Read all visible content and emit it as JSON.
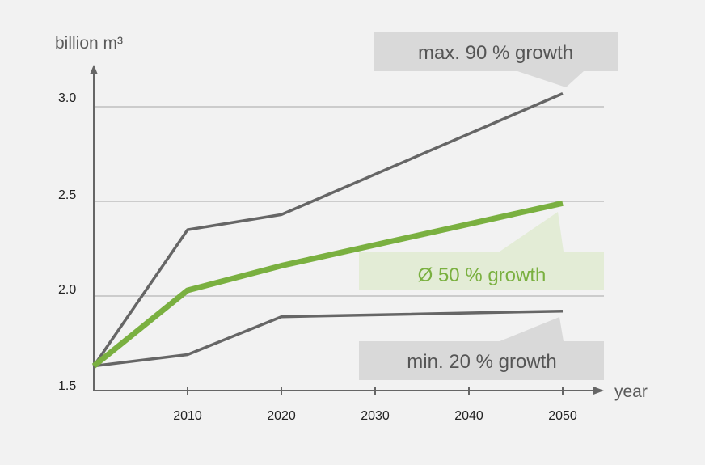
{
  "chart_data": {
    "type": "line",
    "title": "",
    "xlabel": "year",
    "ylabel": "billion m³",
    "x": [
      2000,
      2010,
      2020,
      2050
    ],
    "x_ticks": [
      "2010",
      "2020",
      "2030",
      "2040",
      "2050"
    ],
    "y_ticks": [
      "1.5",
      "2.0",
      "2.5",
      "3.0"
    ],
    "ylim": [
      1.5,
      3.2
    ],
    "grid": true,
    "series": [
      {
        "name": "max",
        "values": [
          1.63,
          2.35,
          2.43,
          3.07
        ],
        "color": "#666666"
      },
      {
        "name": "avg",
        "values": [
          1.63,
          2.03,
          2.16,
          2.49
        ],
        "color": "#7ab040"
      },
      {
        "name": "min",
        "values": [
          1.63,
          1.69,
          1.89,
          1.92
        ],
        "color": "#666666"
      }
    ],
    "annotations": [
      {
        "series": "max",
        "label": "max. 90 % growth",
        "color": "#555555"
      },
      {
        "series": "avg",
        "label": "Ø 50 % growth",
        "color": "#7ab040"
      },
      {
        "series": "min",
        "label": "min. 20 % growth",
        "color": "#555555"
      }
    ]
  }
}
